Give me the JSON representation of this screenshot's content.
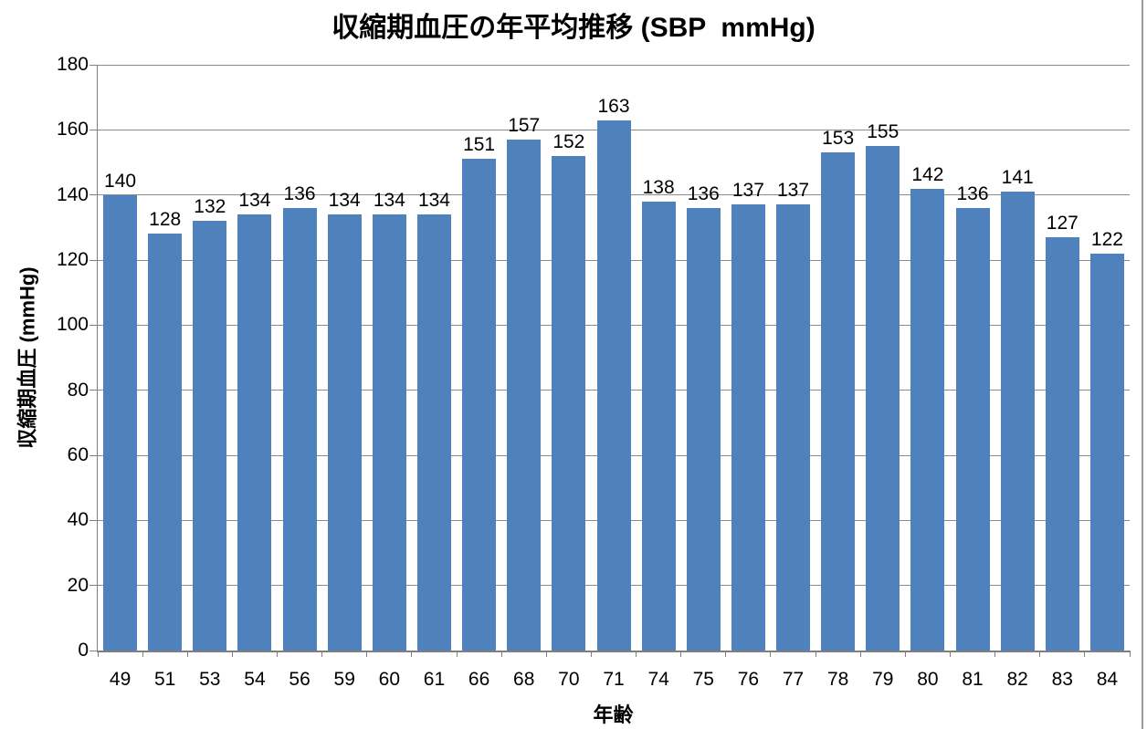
{
  "chart_data": {
    "type": "bar",
    "title": "収縮期血圧の年平均推移 (SBP  mmHg)",
    "xlabel": "年齢",
    "ylabel": "収縮期血圧 (mmHg)",
    "categories": [
      "49",
      "51",
      "53",
      "54",
      "56",
      "59",
      "60",
      "61",
      "66",
      "68",
      "70",
      "71",
      "74",
      "75",
      "76",
      "77",
      "78",
      "79",
      "80",
      "81",
      "82",
      "83",
      "84"
    ],
    "values": [
      140,
      128,
      132,
      134,
      136,
      134,
      134,
      134,
      151,
      157,
      152,
      163,
      138,
      136,
      137,
      137,
      153,
      155,
      142,
      136,
      141,
      127,
      122
    ],
    "ylim": [
      0,
      180
    ],
    "yticks": [
      0,
      20,
      40,
      60,
      80,
      100,
      120,
      140,
      160,
      180
    ],
    "grid": true,
    "legend": "none",
    "data_labels": true,
    "colors": {
      "bar": "#4F81BD",
      "gridline": "#8C8C8C",
      "axis": "#7F7F7F",
      "text": "#000000",
      "chart_right_border": "#999999"
    }
  }
}
